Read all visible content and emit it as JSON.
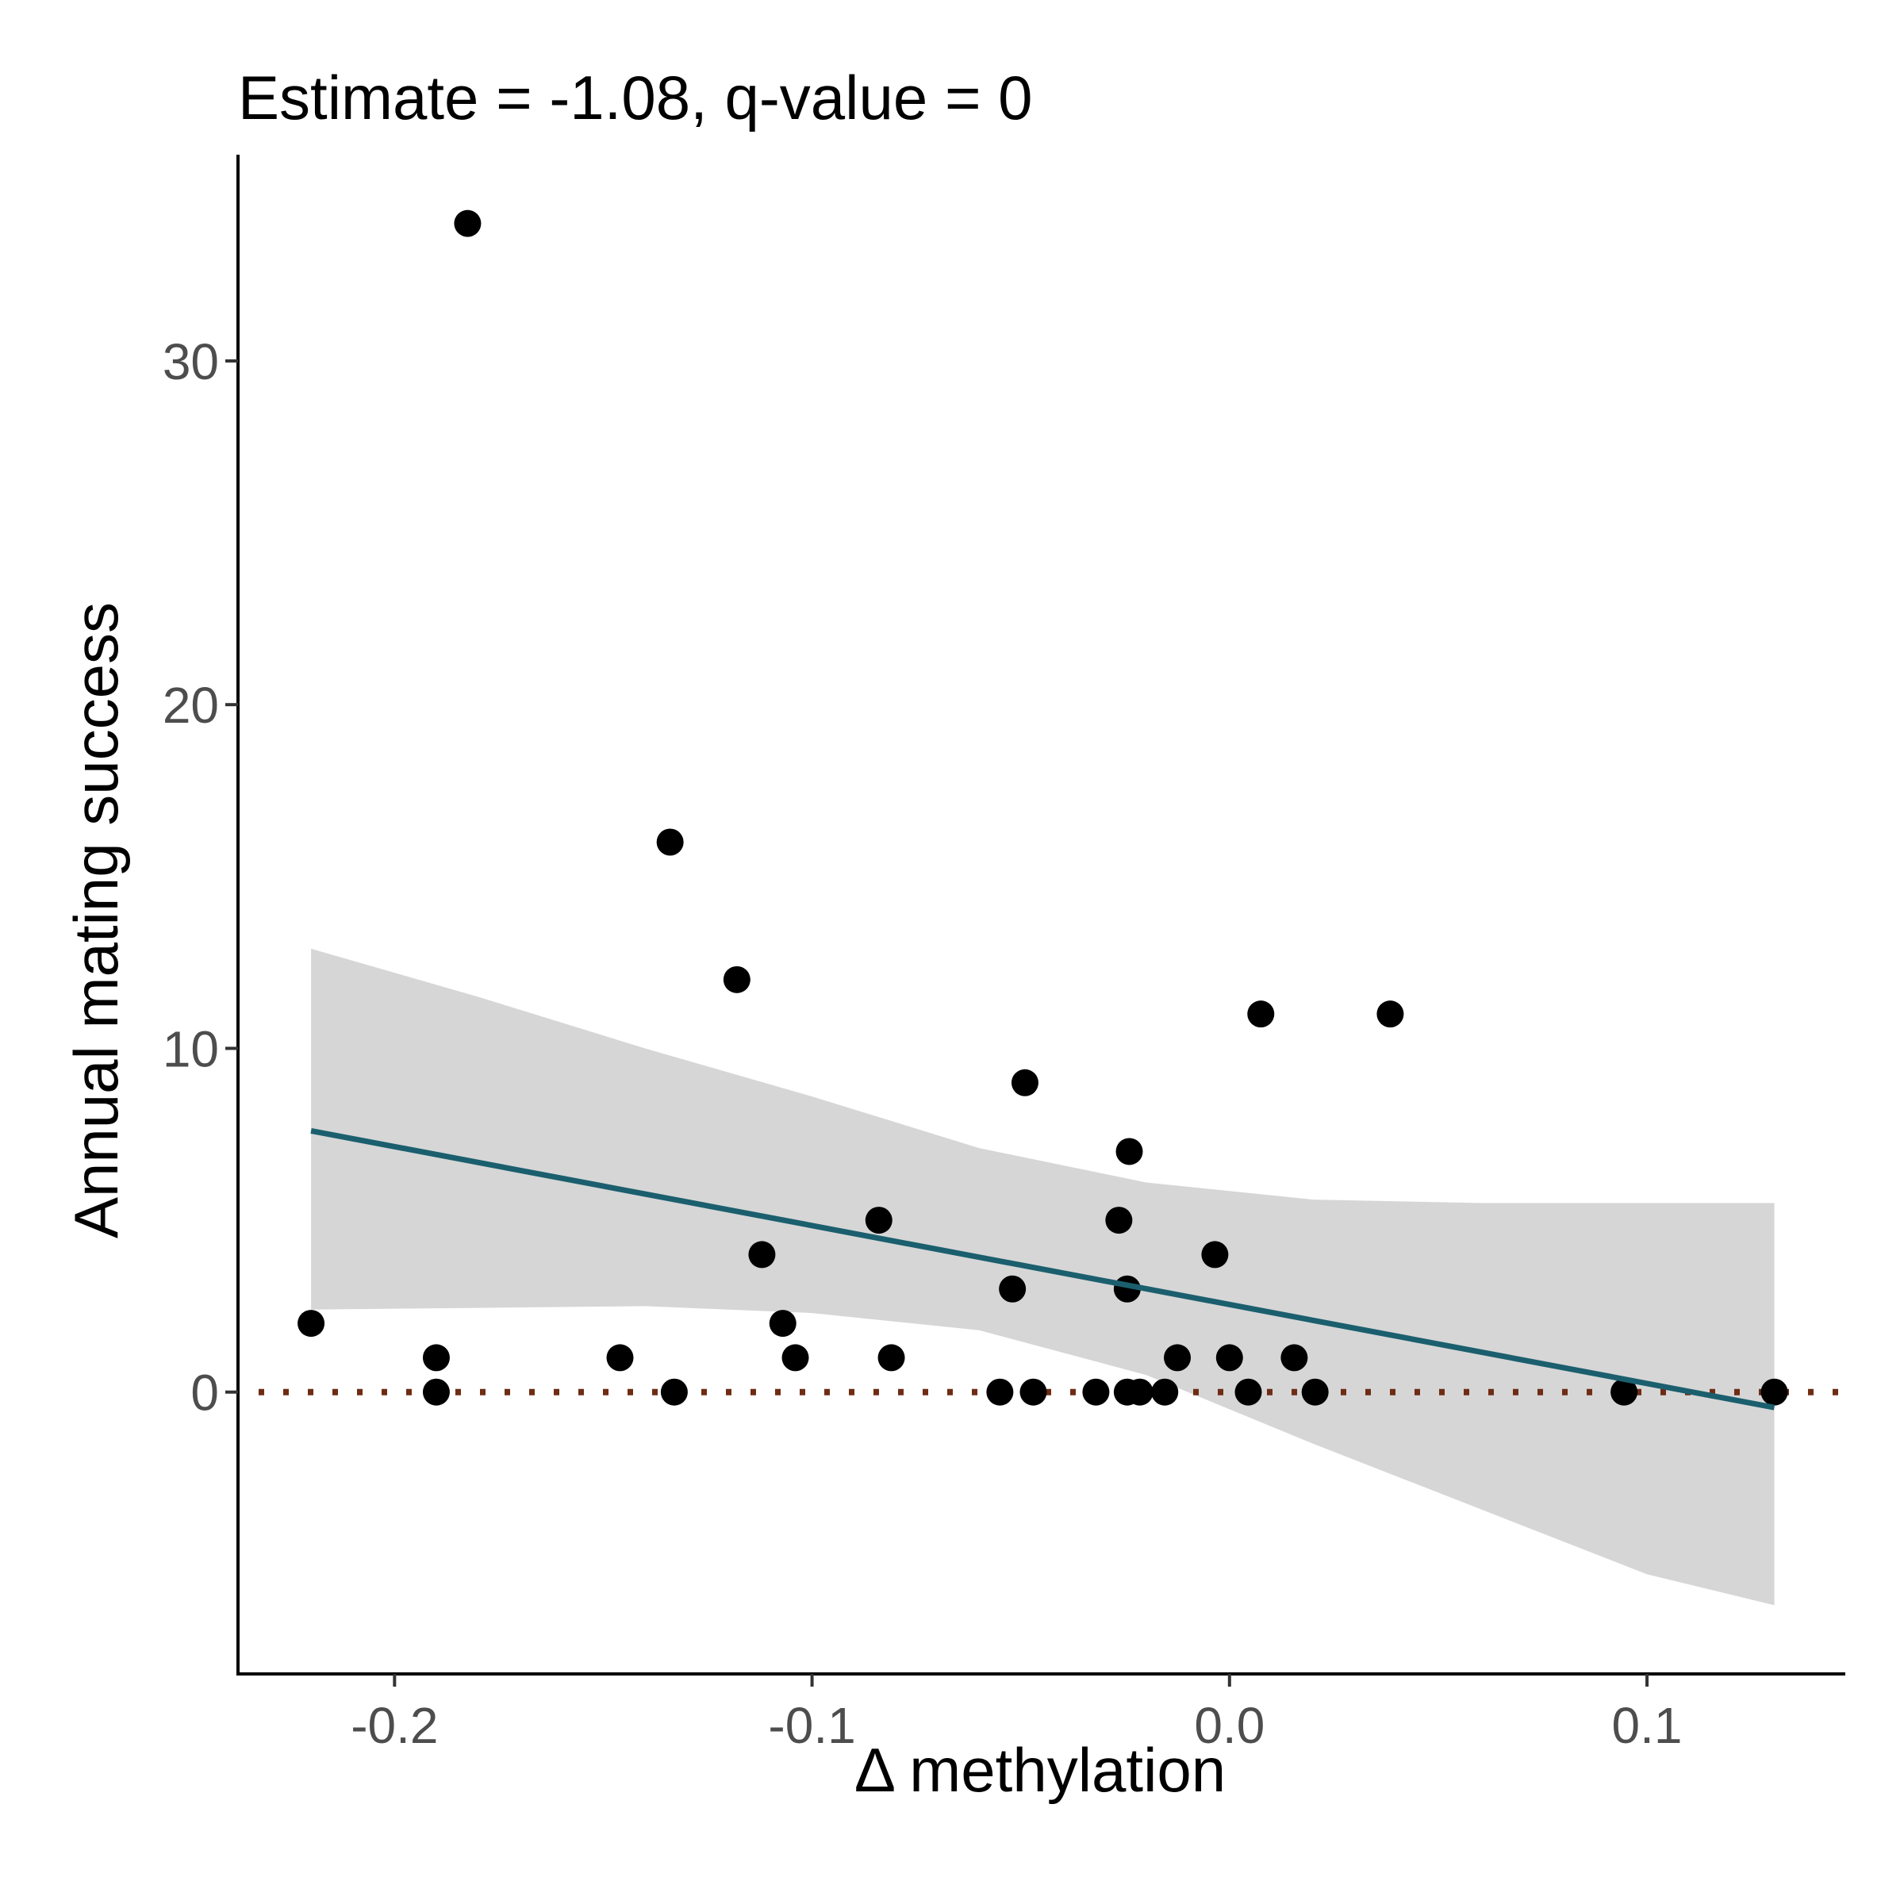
{
  "chart_data": {
    "type": "scatter",
    "title": "Estimate = -1.08, q-value = 0",
    "xlabel": "Δ methylation",
    "ylabel": "Annual mating success",
    "xlim": [
      -0.2375,
      0.1475
    ],
    "ylim": [
      -8.2,
      36.0
    ],
    "x_ticks": [
      -0.2,
      -0.1,
      0.0,
      0.1
    ],
    "x_tick_labels": [
      "-0.2",
      "-0.1",
      "0.0",
      "0.1"
    ],
    "y_ticks": [
      0,
      10,
      20,
      30
    ],
    "y_tick_labels": [
      "0",
      "10",
      "20",
      "30"
    ],
    "grid": false,
    "points": [
      {
        "x": -0.22,
        "y": 2
      },
      {
        "x": -0.19,
        "y": 1
      },
      {
        "x": -0.19,
        "y": 0
      },
      {
        "x": -0.1825,
        "y": 34
      },
      {
        "x": -0.146,
        "y": 1
      },
      {
        "x": -0.134,
        "y": 16
      },
      {
        "x": -0.133,
        "y": 0
      },
      {
        "x": -0.118,
        "y": 12
      },
      {
        "x": -0.112,
        "y": 4
      },
      {
        "x": -0.107,
        "y": 2
      },
      {
        "x": -0.104,
        "y": 1
      },
      {
        "x": -0.084,
        "y": 5
      },
      {
        "x": -0.081,
        "y": 1
      },
      {
        "x": -0.055,
        "y": 0
      },
      {
        "x": -0.052,
        "y": 3
      },
      {
        "x": -0.049,
        "y": 9
      },
      {
        "x": -0.047,
        "y": 0
      },
      {
        "x": -0.032,
        "y": 0
      },
      {
        "x": -0.0265,
        "y": 5
      },
      {
        "x": -0.0245,
        "y": 3
      },
      {
        "x": -0.0245,
        "y": 0
      },
      {
        "x": -0.024,
        "y": 7
      },
      {
        "x": -0.0215,
        "y": 0
      },
      {
        "x": -0.0155,
        "y": 0
      },
      {
        "x": -0.0125,
        "y": 1
      },
      {
        "x": -0.0035,
        "y": 4
      },
      {
        "x": 0.0,
        "y": 1
      },
      {
        "x": 0.0045,
        "y": 0
      },
      {
        "x": 0.0075,
        "y": 11
      },
      {
        "x": 0.0155,
        "y": 1
      },
      {
        "x": 0.0205,
        "y": 0
      },
      {
        "x": 0.0385,
        "y": 11
      },
      {
        "x": 0.0945,
        "y": 0
      },
      {
        "x": 0.1305,
        "y": 0
      }
    ],
    "fit_line": {
      "x": [
        -0.22,
        0.1305
      ],
      "y": [
        7.6,
        -0.45
      ],
      "color": "#1b5f6e"
    },
    "confidence_band": {
      "x": [
        -0.22,
        -0.18,
        -0.14,
        -0.1,
        -0.06,
        -0.02,
        0.02,
        0.06,
        0.1,
        0.1305
      ],
      "upper": [
        12.9,
        11.5,
        10.0,
        8.6,
        7.1,
        6.1,
        5.6,
        5.5,
        5.5,
        5.5
      ],
      "lower": [
        2.4,
        2.45,
        2.5,
        2.3,
        1.8,
        0.5,
        -1.5,
        -3.4,
        -5.3,
        -6.2
      ],
      "color": "#d6d6d6"
    },
    "reference_line": {
      "y": 0,
      "style": "dotted",
      "color": "#6e2c14"
    },
    "point_color": "#000000"
  }
}
